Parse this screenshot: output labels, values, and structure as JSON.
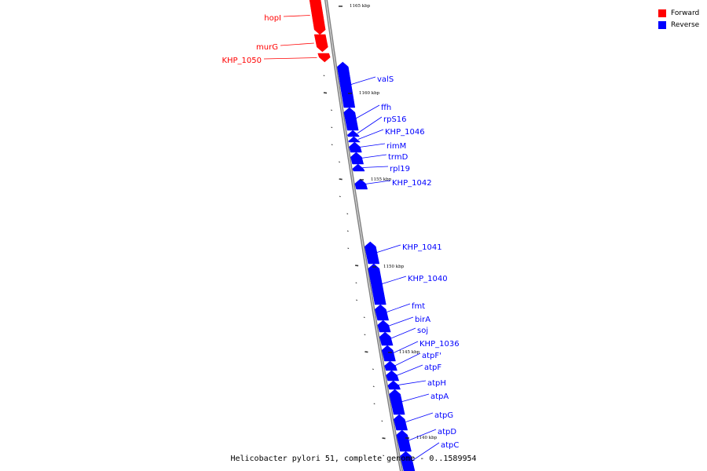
{
  "caption": "Helicobacter pylori 51, complete genome - 0..1589954",
  "legend": [
    {
      "label": "Forward",
      "color": "#ff0000"
    },
    {
      "label": "Reverse",
      "color": "#0000ff"
    }
  ],
  "colors": {
    "forward": "#ff0000",
    "reverse": "#0000ff",
    "backbone": "#808080"
  },
  "kbp_labels": [
    "1165 kbp",
    "1160 kbp",
    "1155 kbp",
    "1150 kbp",
    "1145 kbp",
    "1140 kbp"
  ],
  "genes": [
    {
      "name": "hopI",
      "strand": "forward"
    },
    {
      "name": "murG",
      "strand": "forward"
    },
    {
      "name": "KHP_1050",
      "strand": "forward"
    },
    {
      "name": "valS",
      "strand": "reverse"
    },
    {
      "name": "ffh",
      "strand": "reverse"
    },
    {
      "name": "rpS16",
      "strand": "reverse"
    },
    {
      "name": "KHP_1046",
      "strand": "reverse"
    },
    {
      "name": "rimM",
      "strand": "reverse"
    },
    {
      "name": "trmD",
      "strand": "reverse"
    },
    {
      "name": "rpl19",
      "strand": "reverse"
    },
    {
      "name": "KHP_1042",
      "strand": "reverse"
    },
    {
      "name": "KHP_1041",
      "strand": "reverse"
    },
    {
      "name": "KHP_1040",
      "strand": "reverse"
    },
    {
      "name": "fmt",
      "strand": "reverse"
    },
    {
      "name": "birA",
      "strand": "reverse"
    },
    {
      "name": "soj",
      "strand": "reverse"
    },
    {
      "name": "KHP_1036",
      "strand": "reverse"
    },
    {
      "name": "atpF'",
      "strand": "reverse"
    },
    {
      "name": "atpF",
      "strand": "reverse"
    },
    {
      "name": "atpH",
      "strand": "reverse"
    },
    {
      "name": "atpA",
      "strand": "reverse"
    },
    {
      "name": "atpG",
      "strand": "reverse"
    },
    {
      "name": "atpD",
      "strand": "reverse"
    },
    {
      "name": "atpC",
      "strand": "reverse"
    }
  ]
}
